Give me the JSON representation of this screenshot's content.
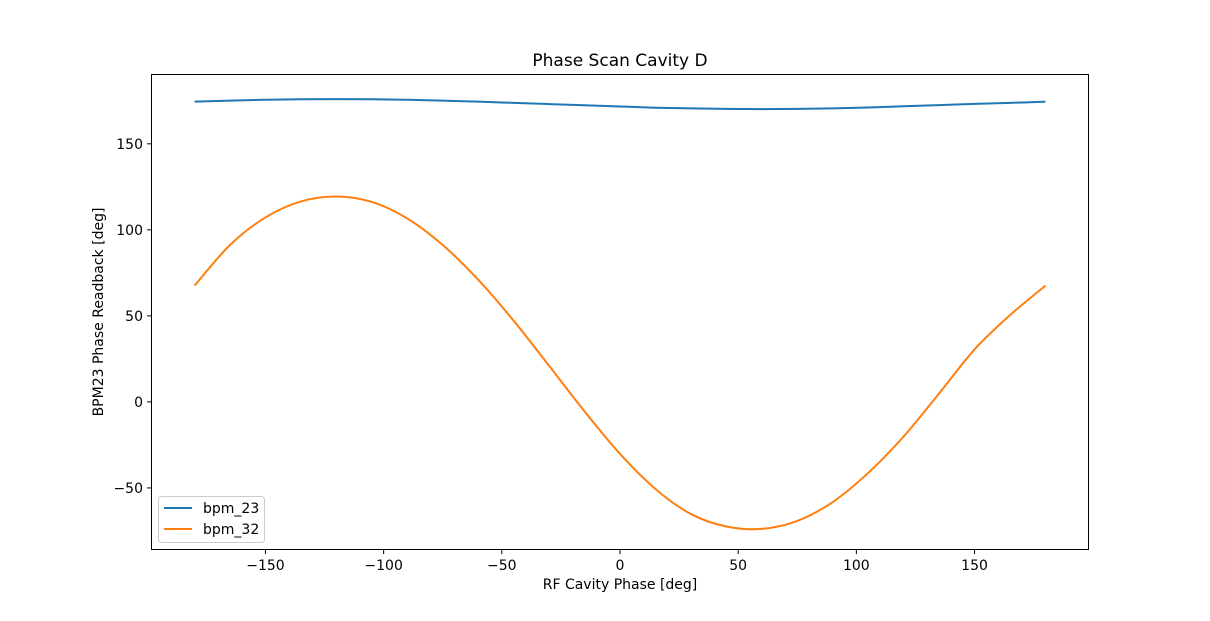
{
  "chart_data": {
    "type": "line",
    "title": "Phase Scan Cavity D",
    "xlabel": "RF Cavity Phase [deg]",
    "ylabel": "BPM23 Phase Readback [deg]",
    "xlim": [
      -198,
      198
    ],
    "ylim": [
      -85.5,
      190
    ],
    "xticks": [
      -150,
      -100,
      -50,
      0,
      50,
      100,
      150
    ],
    "xtick_labels": [
      "−150",
      "−100",
      "−50",
      "0",
      "50",
      "100",
      "150"
    ],
    "yticks": [
      -50,
      0,
      50,
      100,
      150
    ],
    "ytick_labels": [
      "−50",
      "0",
      "50",
      "100",
      "150"
    ],
    "grid": false,
    "legend_location": "lower left",
    "series": [
      {
        "name": "bpm_23",
        "color": "#1f77b4",
        "x": [
          -180,
          -165,
          -150,
          -135,
          -120,
          -105,
          -90,
          -75,
          -60,
          -45,
          -30,
          -15,
          0,
          15,
          30,
          45,
          60,
          75,
          90,
          105,
          120,
          135,
          150,
          165,
          180
        ],
        "y": [
          174.5,
          175.1,
          175.6,
          175.9,
          176.0,
          175.9,
          175.6,
          175.1,
          174.5,
          173.8,
          173.1,
          172.4,
          171.7,
          171.0,
          170.6,
          170.3,
          170.2,
          170.3,
          170.6,
          171.1,
          171.8,
          172.5,
          173.2,
          173.8,
          174.5
        ]
      },
      {
        "name": "bpm_32",
        "color": "#ff7f0e",
        "x": [
          -180,
          -165,
          -150,
          -135,
          -120,
          -105,
          -90,
          -75,
          -60,
          -45,
          -30,
          -15,
          0,
          15,
          30,
          45,
          60,
          75,
          90,
          105,
          120,
          135,
          150,
          165,
          180
        ],
        "y": [
          67.6,
          91.2,
          107.2,
          116.5,
          119.4,
          116.2,
          106.6,
          91.2,
          71.0,
          47.2,
          21.0,
          -5.5,
          -30.2,
          -50.6,
          -65.2,
          -72.4,
          -73.8,
          -69.2,
          -58.2,
          -41.3,
          -20.1,
          4.9,
          30.5,
          50.4,
          67.6
        ]
      }
    ]
  }
}
